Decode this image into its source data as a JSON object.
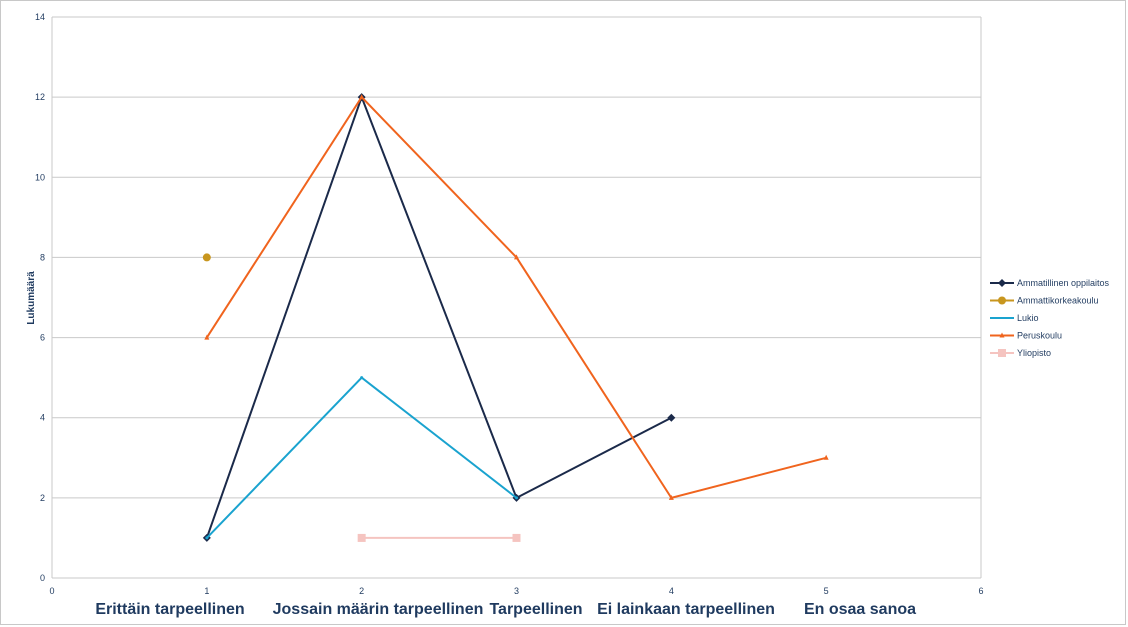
{
  "chart_data": {
    "type": "line",
    "ylabel": "Lukumäärä",
    "xlim": [
      0,
      6
    ],
    "ylim": [
      0,
      14
    ],
    "x_ticks": [
      0,
      1,
      2,
      3,
      4,
      5,
      6
    ],
    "y_ticks": [
      0,
      2,
      4,
      6,
      8,
      10,
      12,
      14
    ],
    "grid": true,
    "legend_position": "right",
    "categories": [
      "Erittäin tarpeellinen",
      "Jossain määrin tarpeellinen",
      "Tarpeellinen",
      "Ei lainkaan tarpeellinen",
      "En osaa sanoa"
    ],
    "series": [
      {
        "name": "Ammatillinen oppilaitos",
        "color": "#1b2a4a",
        "marker": "diamond",
        "points": [
          [
            1,
            1
          ],
          [
            2,
            12
          ],
          [
            3,
            2
          ],
          [
            4,
            4
          ]
        ]
      },
      {
        "name": "Ammattikorkeakoulu",
        "color": "#c8961e",
        "marker": "circle",
        "points": [
          [
            1,
            8
          ]
        ]
      },
      {
        "name": "Lukio",
        "color": "#1aa3cf",
        "marker": "dot",
        "points": [
          [
            1,
            1
          ],
          [
            2,
            5
          ],
          [
            3,
            2
          ]
        ]
      },
      {
        "name": "Peruskoulu",
        "color": "#f0641e",
        "marker": "triangle",
        "points": [
          [
            1,
            6
          ],
          [
            2,
            12
          ],
          [
            3,
            8
          ],
          [
            4,
            2
          ],
          [
            5,
            3
          ]
        ]
      },
      {
        "name": "Yliopisto",
        "color": "#f5c4c0",
        "marker": "square",
        "points": [
          [
            2,
            1
          ],
          [
            3,
            1
          ]
        ]
      }
    ]
  }
}
